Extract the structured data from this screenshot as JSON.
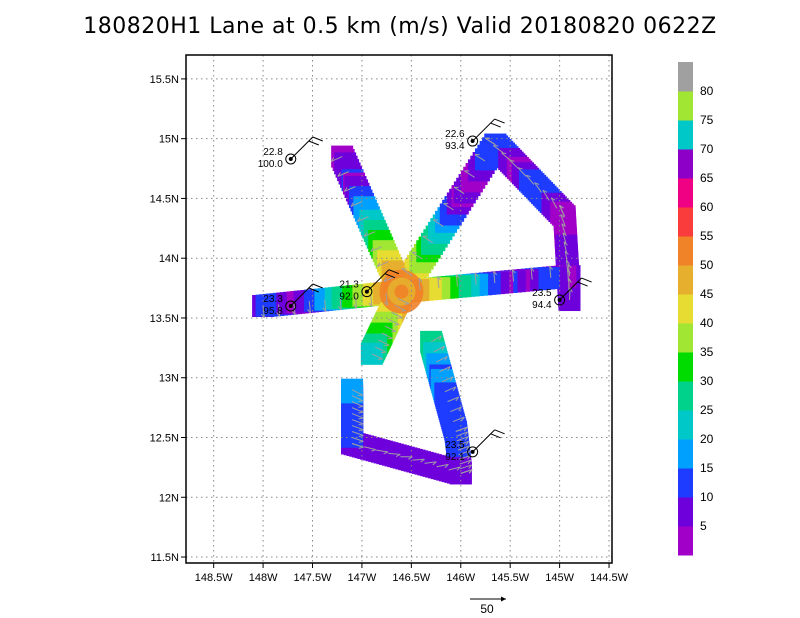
{
  "title": "180820H1 Lane at 0.5 km (m/s) Valid 20180820 0622Z",
  "reference_arrow_label": "50",
  "chart_data": {
    "type": "heatmap",
    "x_ticks": [
      "148.5W",
      "148W",
      "147.5W",
      "147W",
      "146.5W",
      "146W",
      "145.5W",
      "145W",
      "144.5W"
    ],
    "x_tick_values": [
      -148.5,
      -148.0,
      -147.5,
      -147.0,
      -146.5,
      -146.0,
      -145.5,
      -145.0,
      -144.5
    ],
    "y_ticks": [
      "11.5N",
      "12N",
      "12.5N",
      "13N",
      "13.5N",
      "14N",
      "14.5N",
      "15N",
      "15.5N"
    ],
    "y_tick_values": [
      11.5,
      12.0,
      12.5,
      13.0,
      13.5,
      14.0,
      14.5,
      15.0,
      15.5
    ],
    "xlim": [
      -148.78,
      -144.47
    ],
    "ylim": [
      11.45,
      15.7
    ],
    "grid": true,
    "colorbar": {
      "labels": [
        "5",
        "10",
        "15",
        "20",
        "25",
        "30",
        "35",
        "40",
        "45",
        "50",
        "55",
        "60",
        "65",
        "70",
        "75",
        "80"
      ],
      "colors": [
        "#a000c8",
        "#6e00dc",
        "#1e3cff",
        "#00a0ff",
        "#00c8c8",
        "#00d28c",
        "#00dc00",
        "#a0e632",
        "#e6dc32",
        "#e6af2d",
        "#f08228",
        "#fa3c3c",
        "#f00082",
        "#8c00c8",
        "#00c8c8",
        "#a0e632",
        "#a0a0a0"
      ],
      "top_label": "80"
    },
    "station_labels": [
      {
        "lon": -147.72,
        "lat": 14.83,
        "temp": "22.8",
        "rh": "100.0"
      },
      {
        "lon": -145.88,
        "lat": 14.98,
        "temp": "22.6",
        "rh": "93.4"
      },
      {
        "lon": -147.72,
        "lat": 13.6,
        "temp": "23.3",
        "rh": "95.8"
      },
      {
        "lon": -145.0,
        "lat": 13.65,
        "temp": "23.5",
        "rh": "94.4"
      },
      {
        "lon": -145.88,
        "lat": 12.38,
        "temp": "23.5",
        "rh": "92.1"
      },
      {
        "lon": -146.95,
        "lat": 13.72,
        "temp": "21.3",
        "rh": "92.0"
      }
    ]
  }
}
